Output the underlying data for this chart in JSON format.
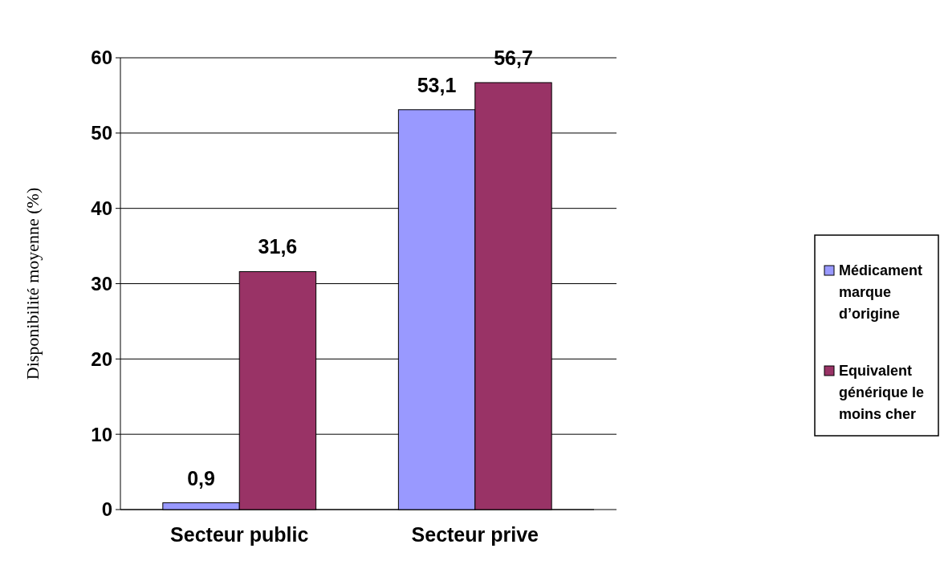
{
  "chart_data": {
    "type": "bar",
    "categories": [
      "Secteur public",
      "Secteur prive"
    ],
    "series": [
      {
        "name": "Médicament marque d’origine",
        "color": "#9999ff",
        "values": [
          0.9,
          53.1
        ],
        "value_labels": [
          "0,9",
          "53,1"
        ]
      },
      {
        "name": "Equivalent générique le moins cher",
        "color": "#993366",
        "values": [
          31.6,
          56.7
        ],
        "value_labels": [
          "31,6",
          "56,7"
        ]
      }
    ],
    "ylabel": "Disponibilité moyenne (%)",
    "ylim": [
      0,
      60
    ],
    "yticks": [
      0,
      10,
      20,
      30,
      40,
      50,
      60
    ],
    "grid": "y",
    "legend": "right"
  }
}
